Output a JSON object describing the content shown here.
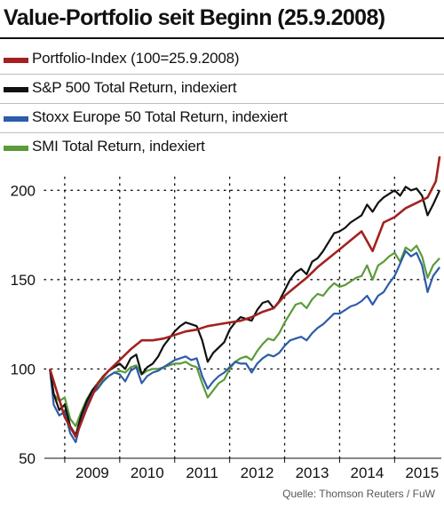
{
  "chart_data": {
    "type": "line",
    "title": "Value-Portfolio seit Beginn (25.9.2008)",
    "source": "Quelle: Thomson Reuters / FuW",
    "x_ticks": [
      "2009",
      "2010",
      "2011",
      "2012",
      "2013",
      "2014",
      "2015"
    ],
    "y_ticks": [
      50,
      100,
      150,
      200
    ],
    "ylim": [
      50,
      225
    ],
    "xlim": [
      2008.63,
      2015.85
    ],
    "grid": true,
    "legend_position": "top",
    "series": [
      {
        "name": "Portfolio-Index (100=25.9.2008)",
        "color": "#a3211f",
        "x": [
          2008.73,
          2008.85,
          2009.0,
          2009.2,
          2009.4,
          2009.6,
          2009.8,
          2010.0,
          2010.2,
          2010.4,
          2010.6,
          2010.8,
          2011.0,
          2011.2,
          2011.4,
          2011.6,
          2011.8,
          2012.0,
          2012.2,
          2012.4,
          2012.6,
          2012.8,
          2013.0,
          2013.2,
          2013.4,
          2013.6,
          2013.8,
          2014.0,
          2014.2,
          2014.4,
          2014.6,
          2014.8,
          2015.0,
          2015.2,
          2015.4,
          2015.6,
          2015.75,
          2015.82
        ],
        "y": [
          100,
          88,
          73,
          62,
          78,
          92,
          99,
          105,
          111,
          116,
          116,
          117,
          119,
          121,
          122,
          124,
          125,
          126,
          127,
          129,
          132,
          134,
          141,
          146,
          151,
          157,
          162,
          167,
          172,
          177,
          166,
          182,
          185,
          190,
          193,
          196,
          205,
          219
        ]
      },
      {
        "name": "S&P 500 Total Return, indexiert",
        "color": "#111111",
        "x": [
          2008.73,
          2008.8,
          2008.9,
          2009.0,
          2009.1,
          2009.2,
          2009.3,
          2009.4,
          2009.5,
          2009.6,
          2009.7,
          2009.8,
          2009.9,
          2010.0,
          2010.1,
          2010.2,
          2010.3,
          2010.4,
          2010.5,
          2010.6,
          2010.7,
          2010.8,
          2010.9,
          2011.0,
          2011.1,
          2011.2,
          2011.3,
          2011.4,
          2011.5,
          2011.6,
          2011.7,
          2011.8,
          2011.9,
          2012.0,
          2012.1,
          2012.2,
          2012.3,
          2012.4,
          2012.5,
          2012.6,
          2012.7,
          2012.8,
          2012.9,
          2013.0,
          2013.1,
          2013.2,
          2013.3,
          2013.4,
          2013.5,
          2013.6,
          2013.7,
          2013.8,
          2013.9,
          2014.0,
          2014.1,
          2014.2,
          2014.3,
          2014.4,
          2014.5,
          2014.6,
          2014.7,
          2014.8,
          2014.9,
          2015.0,
          2015.1,
          2015.2,
          2015.3,
          2015.4,
          2015.5,
          2015.6,
          2015.7,
          2015.82
        ],
        "y": [
          100,
          86,
          77,
          80,
          68,
          63,
          74,
          82,
          88,
          92,
          96,
          99,
          101,
          103,
          100,
          106,
          108,
          97,
          101,
          103,
          107,
          113,
          117,
          121,
          124,
          126,
          125,
          124,
          116,
          104,
          109,
          112,
          115,
          122,
          126,
          129,
          128,
          127,
          133,
          137,
          138,
          134,
          138,
          144,
          150,
          154,
          156,
          153,
          160,
          162,
          166,
          171,
          176,
          177,
          179,
          182,
          184,
          186,
          192,
          188,
          193,
          196,
          198,
          200,
          197,
          202,
          200,
          201,
          197,
          186,
          192,
          200
        ]
      },
      {
        "name": "Stoxx Europe 50 Total Return, indexiert",
        "color": "#2d5ca8",
        "x": [
          2008.73,
          2008.8,
          2008.9,
          2009.0,
          2009.1,
          2009.2,
          2009.3,
          2009.4,
          2009.5,
          2009.6,
          2009.7,
          2009.8,
          2009.9,
          2010.0,
          2010.1,
          2010.2,
          2010.3,
          2010.4,
          2010.5,
          2010.6,
          2010.7,
          2010.8,
          2010.9,
          2011.0,
          2011.1,
          2011.2,
          2011.3,
          2011.4,
          2011.5,
          2011.6,
          2011.7,
          2011.8,
          2011.9,
          2012.0,
          2012.1,
          2012.2,
          2012.3,
          2012.4,
          2012.5,
          2012.6,
          2012.7,
          2012.8,
          2012.9,
          2013.0,
          2013.1,
          2013.2,
          2013.3,
          2013.4,
          2013.5,
          2013.6,
          2013.7,
          2013.8,
          2013.9,
          2014.0,
          2014.1,
          2014.2,
          2014.3,
          2014.4,
          2014.5,
          2014.6,
          2014.7,
          2014.8,
          2014.9,
          2015.0,
          2015.1,
          2015.2,
          2015.3,
          2015.4,
          2015.5,
          2015.6,
          2015.7,
          2015.82
        ],
        "y": [
          100,
          80,
          74,
          76,
          64,
          59,
          72,
          80,
          86,
          89,
          93,
          96,
          98,
          97,
          93,
          99,
          101,
          92,
          96,
          98,
          99,
          101,
          103,
          105,
          106,
          107,
          105,
          106,
          96,
          89,
          93,
          96,
          98,
          101,
          104,
          103,
          103,
          98,
          103,
          106,
          108,
          107,
          109,
          113,
          116,
          117,
          118,
          116,
          120,
          123,
          125,
          128,
          131,
          131,
          133,
          135,
          136,
          138,
          141,
          136,
          141,
          143,
          148,
          152,
          159,
          166,
          163,
          165,
          158,
          143,
          152,
          157
        ]
      },
      {
        "name": "SMI Total Return, indexiert",
        "color": "#5c9b3a",
        "x": [
          2008.73,
          2008.8,
          2008.9,
          2009.0,
          2009.1,
          2009.2,
          2009.3,
          2009.4,
          2009.5,
          2009.6,
          2009.7,
          2009.8,
          2009.9,
          2010.0,
          2010.1,
          2010.2,
          2010.3,
          2010.4,
          2010.5,
          2010.6,
          2010.7,
          2010.8,
          2010.9,
          2011.0,
          2011.1,
          2011.2,
          2011.3,
          2011.4,
          2011.5,
          2011.6,
          2011.7,
          2011.8,
          2011.9,
          2012.0,
          2012.1,
          2012.2,
          2012.3,
          2012.4,
          2012.5,
          2012.6,
          2012.7,
          2012.8,
          2012.9,
          2013.0,
          2013.1,
          2013.2,
          2013.3,
          2013.4,
          2013.5,
          2013.6,
          2013.7,
          2013.8,
          2013.9,
          2014.0,
          2014.1,
          2014.2,
          2014.3,
          2014.4,
          2014.5,
          2014.6,
          2014.7,
          2014.8,
          2014.9,
          2015.0,
          2015.1,
          2015.2,
          2015.3,
          2015.4,
          2015.5,
          2015.6,
          2015.7,
          2015.82
        ],
        "y": [
          100,
          86,
          82,
          84,
          72,
          68,
          76,
          83,
          88,
          90,
          94,
          96,
          98,
          99,
          98,
          101,
          102,
          97,
          99,
          100,
          100,
          101,
          102,
          103,
          103,
          104,
          102,
          101,
          92,
          84,
          88,
          92,
          94,
          100,
          104,
          106,
          107,
          105,
          110,
          114,
          117,
          116,
          120,
          126,
          131,
          136,
          137,
          134,
          139,
          142,
          141,
          145,
          148,
          146,
          147,
          149,
          151,
          152,
          158,
          150,
          158,
          160,
          163,
          165,
          160,
          168,
          166,
          169,
          163,
          151,
          158,
          162
        ]
      }
    ]
  }
}
